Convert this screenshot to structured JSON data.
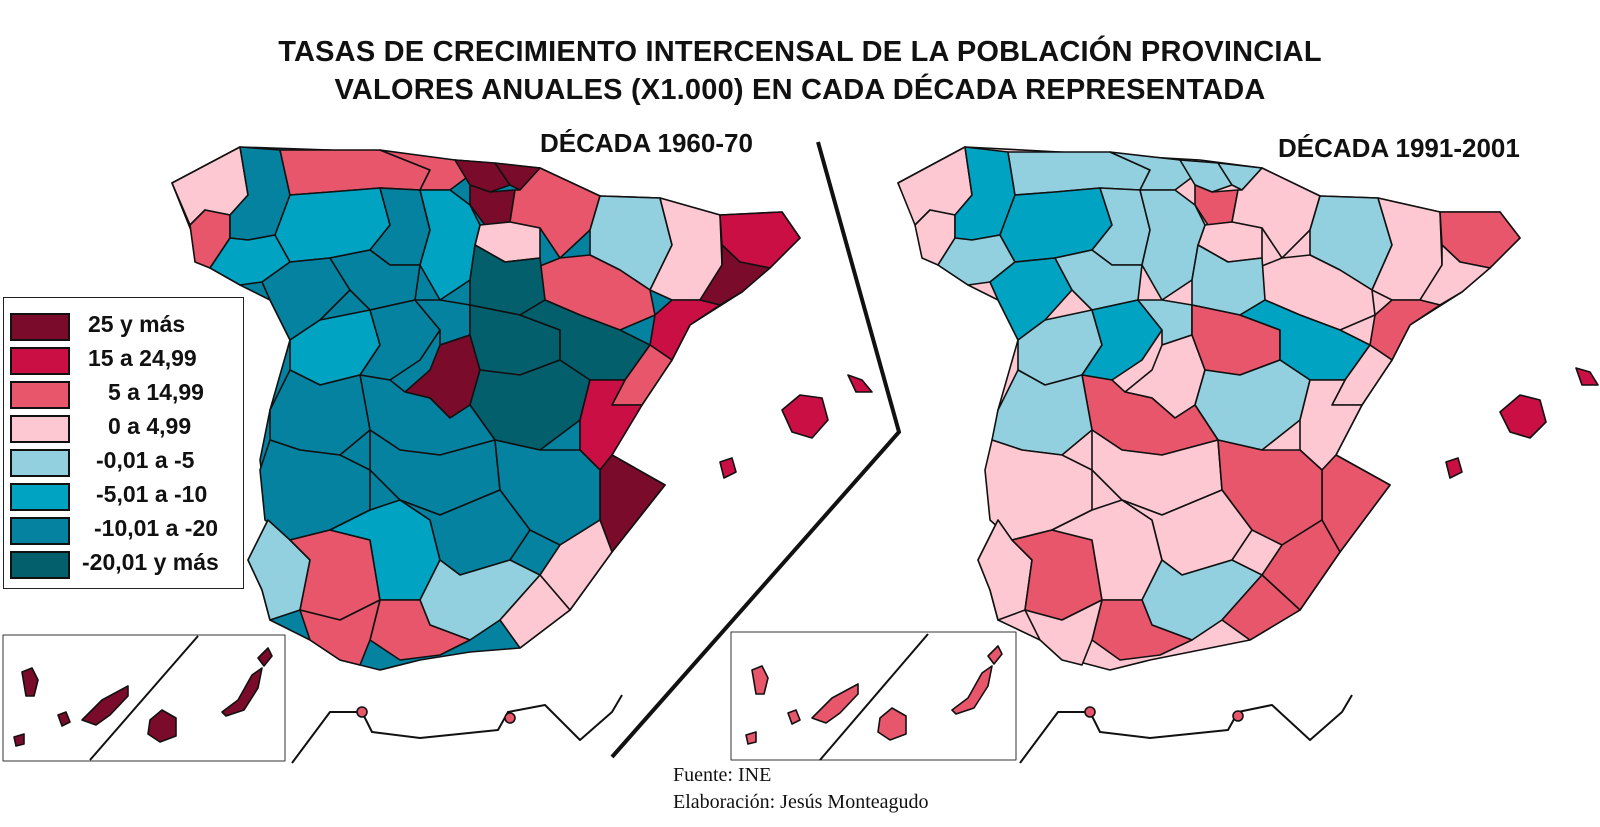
{
  "title": {
    "line1": "TASAS DE CRECIMIENTO INTERCENSAL DE LA POBLACIÓN PROVINCIAL",
    "line2": "VALORES ANUALES (X1.000) EN CADA DÉCADA REPRESENTADA"
  },
  "maps": [
    {
      "decade_label": "DÉCADA 1960-70"
    },
    {
      "decade_label": "DÉCADA 1991-2001"
    }
  ],
  "legend": {
    "items": [
      {
        "label": "25 y más",
        "color": "#7a0b2b"
      },
      {
        "label": "15 a 24,99",
        "color": "#c90f44"
      },
      {
        "label": "5 a 14,99",
        "color": "#e8566c"
      },
      {
        "label": "0 a 4,99",
        "color": "#fdc8d2"
      },
      {
        "label": "-0,01 a -5",
        "color": "#93d0df"
      },
      {
        "label": "-5,01 a -10",
        "color": "#00a3c1"
      },
      {
        "label": "-10,01 a -20",
        "color": "#0482a0"
      },
      {
        "label": "-20,01 y más",
        "color": "#045f6c"
      }
    ]
  },
  "source": {
    "line1": "Fuente: INE",
    "line2": "Elaboración: Jesús Monteagudo"
  }
}
